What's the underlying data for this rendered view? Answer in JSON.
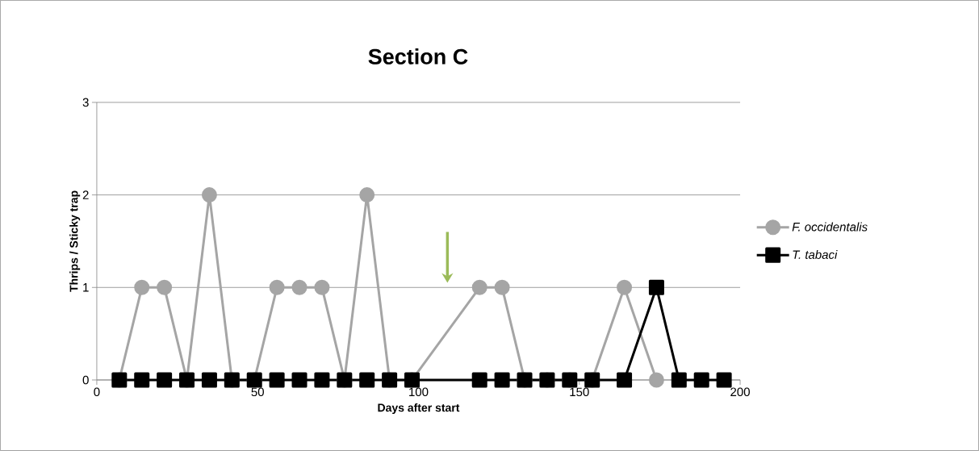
{
  "chart_data": {
    "type": "line",
    "title": "Section C",
    "xlabel": "Days after start",
    "ylabel": "Thrips / Sticky trap",
    "xlim": [
      0,
      200
    ],
    "xticks": [
      0,
      50,
      100,
      150,
      200
    ],
    "ylim": [
      0,
      3
    ],
    "yticks": [
      0,
      1,
      2,
      3
    ],
    "grid": "y",
    "legend": "right",
    "series": [
      {
        "name": "F. occidentalis",
        "color": "#a5a5a5",
        "marker": "circle",
        "x": [
          7,
          14,
          21,
          28,
          35,
          42,
          49,
          56,
          63,
          70,
          77,
          84,
          91,
          98,
          119,
          126,
          133,
          140,
          147,
          154,
          164,
          174
        ],
        "values": [
          0,
          1,
          1,
          0,
          2,
          0,
          0,
          1,
          1,
          1,
          0,
          2,
          0,
          0,
          1,
          1,
          0,
          0,
          0,
          0,
          1,
          0
        ]
      },
      {
        "name": "T. tabaci",
        "color": "#000000",
        "marker": "square",
        "x": [
          7,
          14,
          21,
          28,
          35,
          42,
          49,
          56,
          63,
          70,
          77,
          84,
          91,
          98,
          119,
          126,
          133,
          140,
          147,
          154,
          164,
          174,
          181,
          188,
          195
        ],
        "values": [
          0,
          0,
          0,
          0,
          0,
          0,
          0,
          0,
          0,
          0,
          0,
          0,
          0,
          0,
          0,
          0,
          0,
          0,
          0,
          0,
          0,
          1,
          0,
          0,
          0
        ]
      }
    ]
  }
}
